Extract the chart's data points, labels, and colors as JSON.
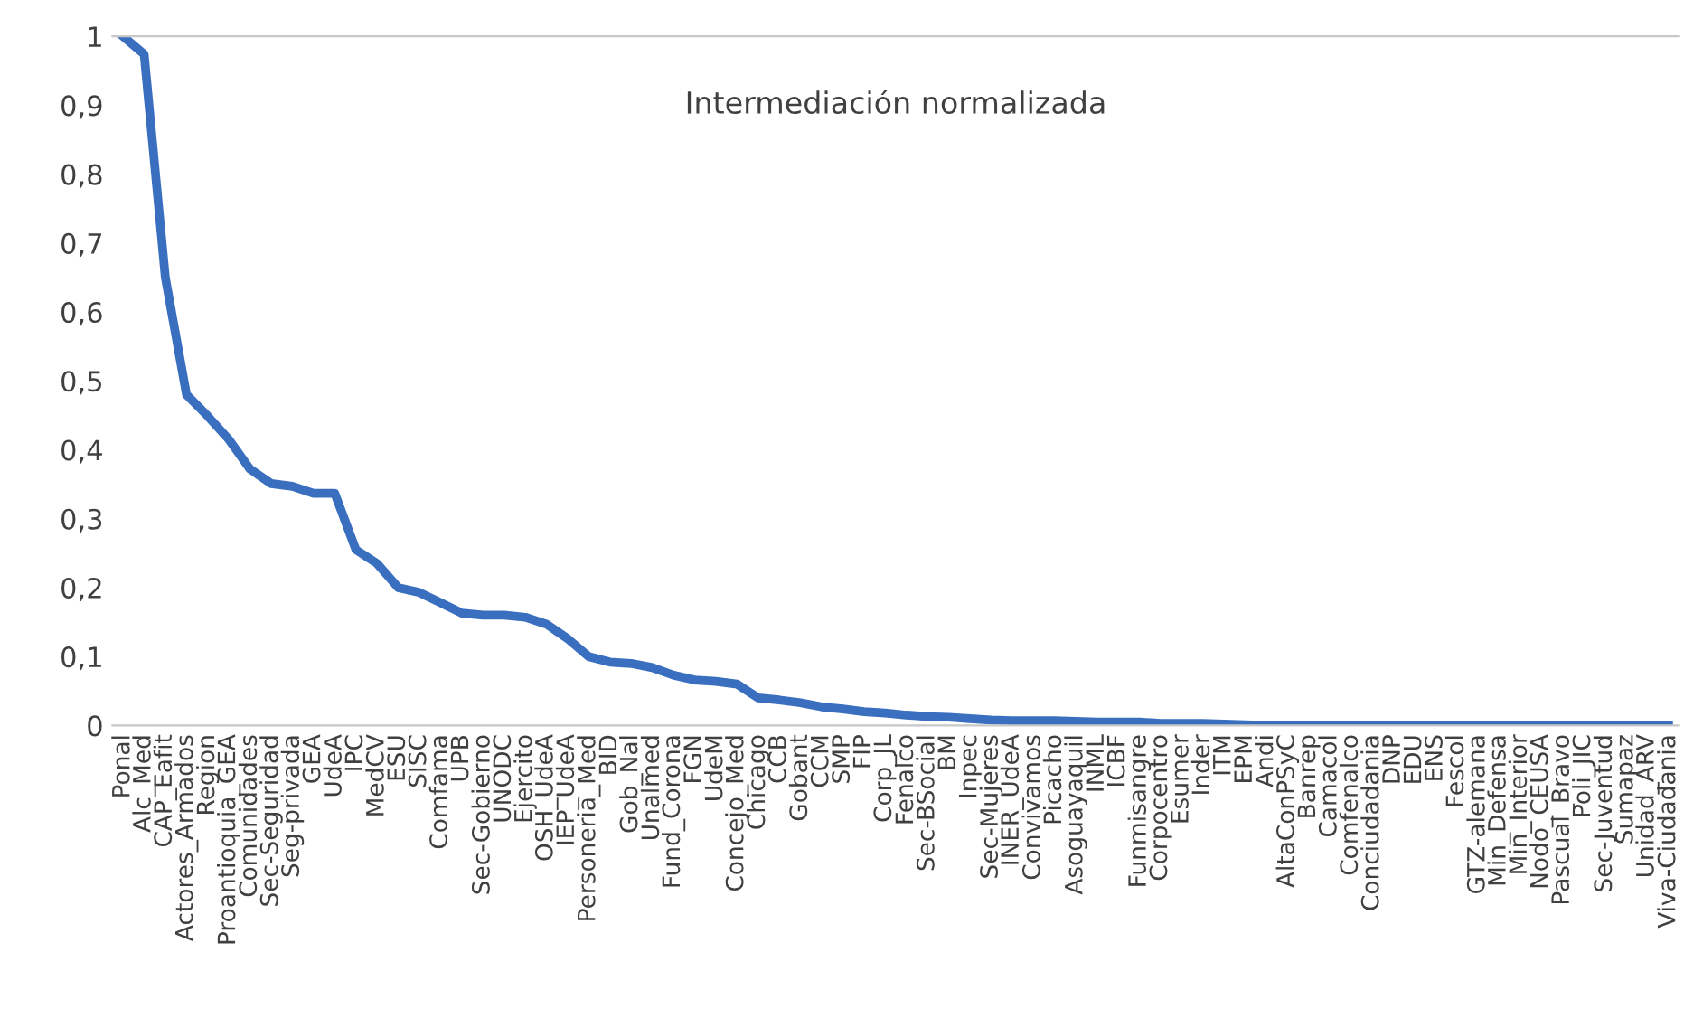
{
  "chart_data": {
    "type": "line",
    "title": "Intermediación normalizada",
    "categories": [
      "Ponal",
      "Alc_Med",
      "CAP_Eafit",
      "Actores_Armados",
      "Region",
      "Proantioquia_GEA",
      "Comunidades",
      "Sec-Seguridad",
      "Seg-privada",
      "GEA",
      "UdeA",
      "IPC",
      "MedCV",
      "ESU",
      "SISC",
      "Comfama",
      "UPB",
      "Sec-Gobierno",
      "UNODC",
      "Ejercito",
      "OSH_UdeA",
      "IEP_UdeA",
      "Personeria_Med",
      "BID",
      "Gob_Nal",
      "Unalmed",
      "Fund_Corona",
      "FGN",
      "UdeM",
      "Concejo_Med",
      "Chicago",
      "CCB",
      "Gobant",
      "CCM",
      "SMP",
      "FIP",
      "Corp_JL",
      "Fenalco",
      "Sec-BSocial",
      "BM",
      "Inpec",
      "Sec-Mujeres",
      "INER_UdeA",
      "Convivamos",
      "Picacho",
      "Asoguayaquil",
      "INML",
      "ICBF",
      "Funmisangre",
      "Corpocentro",
      "Esumer",
      "Inder",
      "ITM",
      "EPM",
      "Andi",
      "AltaConPSyC",
      "Banrep",
      "Camacol",
      "Comfenalco",
      "Conciudadania",
      "DNP",
      "EDU",
      "ENS",
      "Fescol",
      "GTZ-alemana",
      "Min_Defensa",
      "Min_Interior",
      "Nodo_CEUSA",
      "Pascual_Bravo",
      "Poli_JIC",
      "Sec-Juventud",
      "Sumapaz",
      "Unidad_ARV",
      "Viva-Ciudadania"
    ],
    "series": [
      {
        "color": "#3a6fc0",
        "values": [
          1,
          0.974,
          0.65,
          0.48,
          0.449,
          0.415,
          0.372,
          0.351,
          0.347,
          0.337,
          0.337,
          0.255,
          0.235,
          0.2,
          0.193,
          0.178,
          0.163,
          0.16,
          0.16,
          0.157,
          0.147,
          0.126,
          0.1,
          0.092,
          0.09,
          0.084,
          0.073,
          0.066,
          0.064,
          0.06,
          0.04,
          0.037,
          0.033,
          0.027,
          0.024,
          0.02,
          0.018,
          0.015,
          0.013,
          0.012,
          0.01,
          0.008,
          0.007,
          0.007,
          0.007,
          0.006,
          0.005,
          0.005,
          0.005,
          0.003,
          0.003,
          0.003,
          0.002,
          0.001,
          0,
          0,
          0,
          0,
          0,
          0,
          0,
          0,
          0,
          0,
          0,
          0,
          0,
          0,
          0,
          0,
          0,
          0,
          0,
          0
        ]
      }
    ],
    "ylim": [
      0,
      1
    ],
    "yticks": [
      0,
      {
        "value": 0.1,
        "label": "0,1"
      },
      {
        "value": 0.2,
        "label": "0,2"
      },
      {
        "value": 0.3,
        "label": "0,3"
      },
      {
        "value": 0.4,
        "label": "0,4"
      },
      {
        "value": 0.5,
        "label": "0,5"
      },
      {
        "value": 0.6,
        "label": "0,6"
      },
      {
        "value": 0.7,
        "label": "0,7"
      },
      {
        "value": 0.8,
        "label": "0,8"
      },
      {
        "value": 0.9,
        "label": "0,9"
      },
      1
    ],
    "line_style": "solid",
    "marker": "none",
    "grid": false
  }
}
